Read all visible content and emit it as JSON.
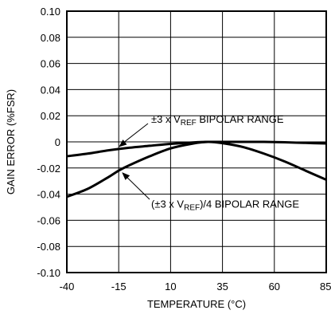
{
  "chart_data": {
    "type": "line",
    "xlabel": "TEMPERATURE (°C)",
    "ylabel": "GAIN ERROR (%FSR)",
    "xlim": [
      -40,
      85
    ],
    "ylim": [
      -0.1,
      0.1
    ],
    "grid": true,
    "x_ticks": [
      -40,
      -15,
      10,
      35,
      60,
      85
    ],
    "x_tick_labels": [
      "-40",
      "-15",
      "10",
      "35",
      "60",
      "85"
    ],
    "y_ticks": [
      0.1,
      0.08,
      0.06,
      0.04,
      0.02,
      0,
      -0.02,
      -0.04,
      -0.06,
      -0.08,
      -0.1
    ],
    "y_tick_labels": [
      "0.10",
      "0.08",
      "0.06",
      "0.04",
      "0.02",
      "0",
      "-0.02",
      "-0.04",
      "-0.06",
      "-0.08",
      "-0.10"
    ],
    "series": [
      {
        "x": [
          -40,
          -30,
          -20,
          -10,
          0,
          10,
          20,
          28,
          35,
          45,
          55,
          65,
          75,
          85
        ],
        "y": [
          -0.011,
          -0.009,
          -0.0065,
          -0.0045,
          -0.003,
          -0.0015,
          -0.0005,
          0.0,
          0.0,
          0.0,
          0.0,
          -0.0003,
          -0.0008,
          -0.0012
        ]
      },
      {
        "x": [
          -40,
          -30,
          -20,
          -15,
          -10,
          0,
          10,
          20,
          28,
          35,
          45,
          55,
          65,
          75,
          85
        ],
        "y": [
          -0.042,
          -0.036,
          -0.027,
          -0.022,
          -0.018,
          -0.011,
          -0.005,
          -0.0015,
          0.0,
          -0.001,
          -0.004,
          -0.009,
          -0.015,
          -0.022,
          -0.029
        ]
      }
    ],
    "annotations": [
      {
        "pre": "±3 x V",
        "sub": "REF",
        "post": " BIPOLAR RANGE"
      },
      {
        "pre": "(±3 x V",
        "sub": "REF",
        "post": ")/4 BIPOLAR RANGE"
      }
    ]
  }
}
